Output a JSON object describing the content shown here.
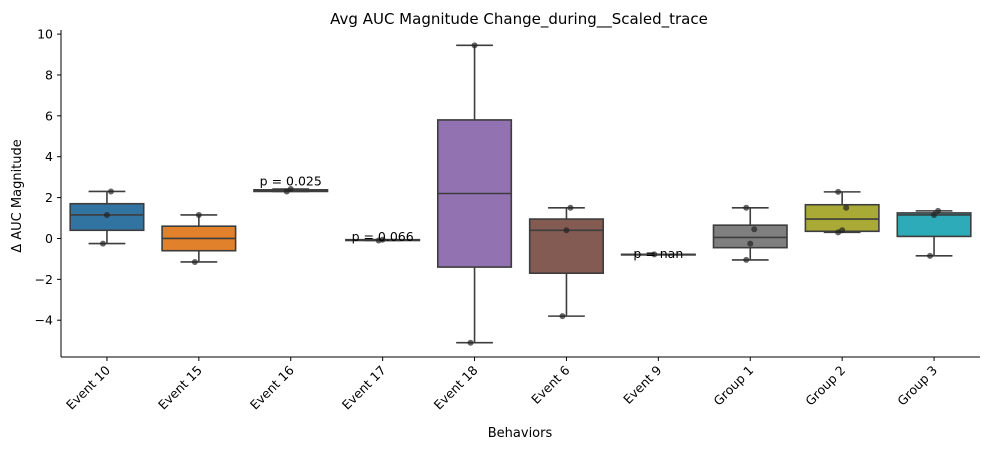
{
  "chart_data": {
    "type": "box",
    "title": "Avg AUC Magnitude Change_during__Scaled_trace",
    "xlabel": "Behaviors",
    "ylabel": "Δ AUC Magnitude",
    "ylim": [
      -5.8,
      10.2
    ],
    "yticks": [
      -4,
      -2,
      0,
      2,
      4,
      6,
      8,
      10
    ],
    "grid": false,
    "categories": [
      "Event 10",
      "Event 15",
      "Event 16",
      "Event 17",
      "Event 18",
      "Event 6",
      "Event 9",
      "Group 1",
      "Group 2",
      "Group 3"
    ],
    "boxes": [
      {
        "category": "Event 10",
        "color": "#3274a1",
        "whislo": -0.25,
        "q1": 0.4,
        "median": 1.15,
        "q3": 1.7,
        "whishi": 2.3,
        "points": [
          -0.25,
          1.15,
          2.3
        ]
      },
      {
        "category": "Event 15",
        "color": "#e1812c",
        "whislo": -1.15,
        "q1": -0.6,
        "median": 0.0,
        "q3": 0.6,
        "whishi": 1.15,
        "points": [
          -1.15,
          1.15
        ]
      },
      {
        "category": "Event 16",
        "color": "#3a923a",
        "whislo": 2.3,
        "q1": 2.3,
        "median": 2.35,
        "q3": 2.38,
        "whishi": 2.42,
        "points": [
          2.3,
          2.42
        ]
      },
      {
        "category": "Event 17",
        "color": "#c03d3e",
        "whislo": -0.1,
        "q1": -0.1,
        "median": -0.08,
        "q3": -0.06,
        "whishi": -0.06,
        "points": [
          -0.1,
          -0.06
        ]
      },
      {
        "category": "Event 18",
        "color": "#9372b2",
        "whislo": -5.1,
        "q1": -1.4,
        "median": 2.2,
        "q3": 5.8,
        "whishi": 9.45,
        "points": [
          -5.1,
          9.45
        ]
      },
      {
        "category": "Event 6",
        "color": "#845b53",
        "whislo": -3.8,
        "q1": -1.7,
        "median": 0.4,
        "q3": 0.95,
        "whishi": 1.5,
        "points": [
          -3.8,
          0.4,
          1.5
        ]
      },
      {
        "category": "Event 9",
        "color": "#d684bd",
        "whislo": -0.78,
        "q1": -0.78,
        "median": -0.78,
        "q3": -0.78,
        "whishi": -0.78,
        "points": [
          -0.78
        ]
      },
      {
        "category": "Group 1",
        "color": "#7f7f7f",
        "whislo": -1.05,
        "q1": -0.45,
        "median": 0.05,
        "q3": 0.65,
        "whishi": 1.5,
        "points": [
          -1.05,
          -0.25,
          0.45,
          1.5
        ]
      },
      {
        "category": "Group 2",
        "color": "#a9aa35",
        "whislo": 0.3,
        "q1": 0.35,
        "median": 0.95,
        "q3": 1.65,
        "whishi": 2.28,
        "points": [
          0.3,
          0.4,
          1.5,
          2.28
        ]
      },
      {
        "category": "Group 3",
        "color": "#2eabb8",
        "whislo": -0.85,
        "q1": 0.1,
        "median": 1.15,
        "q3": 1.25,
        "whishi": 1.35,
        "points": [
          -0.85,
          1.15,
          1.35
        ]
      }
    ],
    "annotations": [
      {
        "category": "Event 16",
        "text": "p = 0.025",
        "y": 2.6
      },
      {
        "category": "Event 17",
        "text": "p = 0.066",
        "y": -0.12
      },
      {
        "category": "Event 9",
        "text": "p = nan",
        "y": -0.95
      }
    ]
  }
}
